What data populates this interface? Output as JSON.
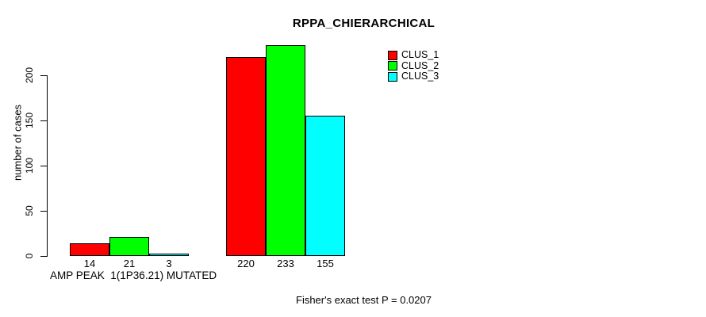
{
  "chart_data": {
    "type": "bar",
    "title": "RPPA_CHIERARCHICAL",
    "ylabel": "number of cases",
    "xlabel": "AMP PEAK  1(1P36.21) MUTATED",
    "footer": "Fisher's exact test P = 0.0207",
    "categories": [
      "AMP PEAK  1(1P36.21) MUTATED",
      ""
    ],
    "series": [
      {
        "name": "CLUS_1",
        "color": "#ff0000",
        "values": [
          14,
          220
        ]
      },
      {
        "name": "CLUS_2",
        "color": "#00ff00",
        "values": [
          21,
          233
        ]
      },
      {
        "name": "CLUS_3",
        "color": "#00ffff",
        "values": [
          3,
          155
        ]
      }
    ],
    "ylim": [
      0,
      200
    ],
    "yticks": [
      0,
      50,
      100,
      150,
      200
    ],
    "show_bar_values": true,
    "grid": false,
    "legend": {
      "position": "top-right",
      "entries": [
        "CLUS_1",
        "CLUS_2",
        "CLUS_3"
      ]
    },
    "colors": {
      "background": "#ffffff",
      "axis": "#000000",
      "text": "#000000"
    }
  }
}
